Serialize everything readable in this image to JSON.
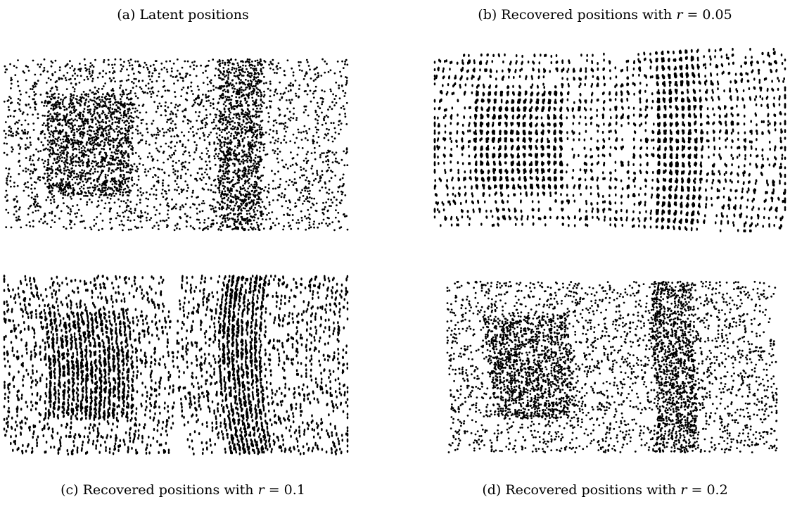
{
  "captions": {
    "a": {
      "pre": "(a) Latent positions",
      "var": "",
      "post": ""
    },
    "b": {
      "pre": "(b) Recovered positions with ",
      "var": "r",
      "post": " = 0.05"
    },
    "c": {
      "pre": "(c) Recovered positions with ",
      "var": "r",
      "post": " = 0.1"
    },
    "d": {
      "pre": "(d) Recovered positions with ",
      "var": "r",
      "post": " = 0.2"
    }
  },
  "chart_data": [
    {
      "type": "scatter",
      "title": "(a) Latent positions",
      "xlim": [
        0,
        2
      ],
      "ylim": [
        0,
        1
      ],
      "dense_regions": [
        {
          "shape": "square",
          "x": [
            0.25,
            0.75
          ],
          "y": [
            0.2,
            0.8
          ]
        },
        {
          "shape": "strip",
          "x": [
            1.25,
            1.5
          ],
          "y": [
            0,
            1
          ]
        }
      ],
      "point_color": "#000000",
      "grid": false,
      "axes": false
    },
    {
      "type": "scatter",
      "title": "(b) Recovered positions with r = 0.05",
      "r": 0.05,
      "distortion": "strong curved streaks",
      "point_color": "#000000",
      "grid": false,
      "axes": false
    },
    {
      "type": "scatter",
      "title": "(c) Recovered positions with r = 0.1",
      "r": 0.1,
      "distortion": "curved vertical streaks",
      "point_color": "#000000",
      "grid": false,
      "axes": false
    },
    {
      "type": "scatter",
      "title": "(d) Recovered positions with r = 0.2",
      "r": 0.2,
      "distortion": "mild",
      "point_color": "#000000",
      "grid": false,
      "axes": false
    }
  ]
}
